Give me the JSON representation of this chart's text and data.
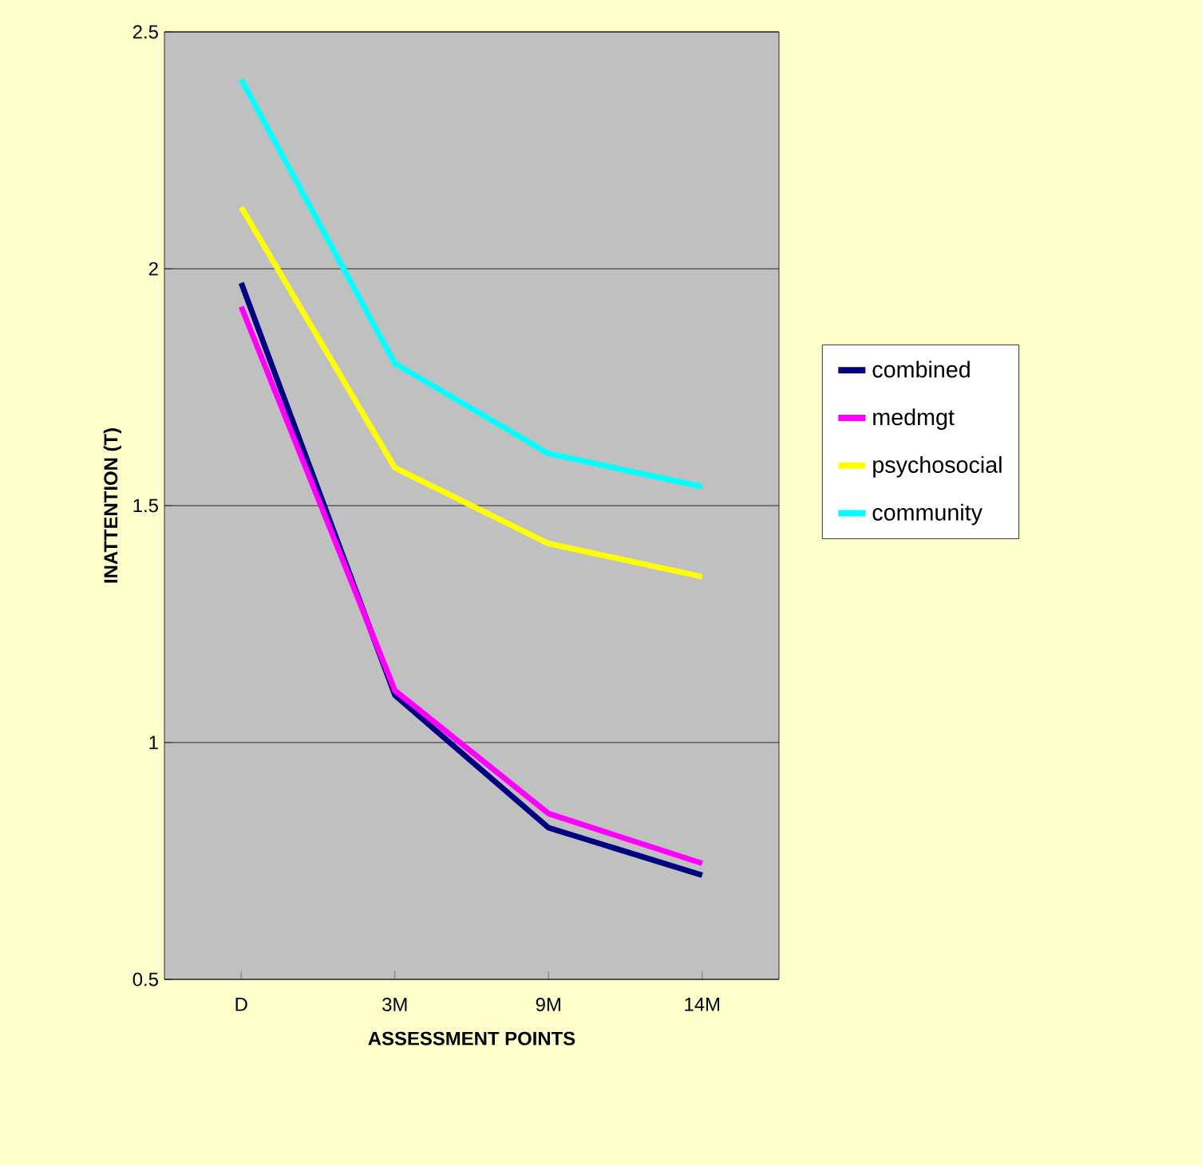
{
  "chart_data": {
    "type": "line",
    "xlabel": "ASSESSMENT POINTS",
    "ylabel": "INATTENTION (T)",
    "categories": [
      "D",
      "3M",
      "9M",
      "14M"
    ],
    "series": [
      {
        "name": "combined",
        "color": "#000080",
        "values": [
          1.97,
          1.1,
          0.82,
          0.72
        ]
      },
      {
        "name": "medmgt",
        "color": "#ff00ff",
        "values": [
          1.92,
          1.11,
          0.85,
          0.745
        ]
      },
      {
        "name": "psychosocial",
        "color": "#ffff00",
        "values": [
          2.13,
          1.58,
          1.42,
          1.35
        ]
      },
      {
        "name": "community",
        "color": "#00ffff",
        "values": [
          2.4,
          1.8,
          1.61,
          1.54
        ]
      }
    ],
    "ylim": [
      0.5,
      2.5
    ],
    "yticks": [
      0.5,
      1,
      1.5,
      2,
      2.5
    ],
    "grid": "y",
    "legend": "right",
    "marker": "none",
    "line_style": "solid"
  }
}
